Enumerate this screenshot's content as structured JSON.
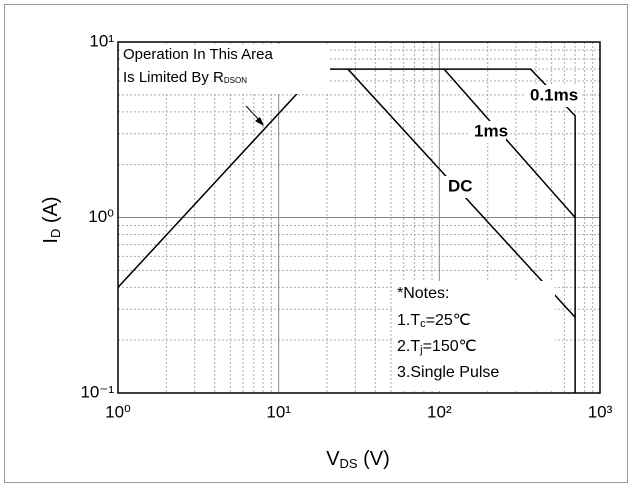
{
  "chart_data": {
    "type": "line",
    "ylabel": {
      "main": "I",
      "sub": "D",
      "rest": " (A)"
    },
    "xlabel": {
      "main": "V",
      "sub": "DS",
      "rest": " (V)"
    },
    "log_x": true,
    "log_y": true,
    "grid": true,
    "xlim": [
      1,
      1000
    ],
    "ylim": [
      0.1,
      10
    ],
    "xticks": [
      {
        "value": 1,
        "label": "10⁰"
      },
      {
        "value": 10,
        "label": "10¹"
      },
      {
        "value": 100,
        "label": "10²"
      },
      {
        "value": 1000,
        "label": "10³"
      }
    ],
    "yticks": [
      {
        "value": 0.1,
        "label": "10⁻¹"
      },
      {
        "value": 1,
        "label": "10⁰"
      },
      {
        "value": 10,
        "label": "10¹"
      }
    ],
    "xminorticks": [
      2,
      3,
      4,
      5,
      6,
      7,
      8,
      9,
      20,
      30,
      40,
      50,
      60,
      70,
      80,
      90,
      200,
      300,
      400,
      500,
      600,
      700,
      800,
      900
    ],
    "yminorticks": [
      0.2,
      0.3,
      0.4,
      0.5,
      0.6,
      0.7,
      0.8,
      0.9,
      2,
      3,
      4,
      5,
      6,
      7,
      8,
      9
    ],
    "series": [
      {
        "name": "DC",
        "color": "#000000",
        "x": [
          1,
          18,
          27,
          700
        ],
        "values": [
          0.4,
          7,
          7,
          0.27
        ]
      },
      {
        "name": "1ms",
        "color": "#000000",
        "x": [
          27,
          107,
          700
        ],
        "values": [
          7,
          7,
          1
        ]
      },
      {
        "name": "0.1ms",
        "color": "#000000",
        "x": [
          107,
          370,
          700,
          700
        ],
        "values": [
          7,
          7,
          3.8,
          0.1
        ]
      }
    ],
    "annotation": {
      "line1": "Operation In This Area",
      "line2": "Is Limited By R",
      "sub": "DSON"
    },
    "notes": {
      "title": "*Notes:",
      "items": [
        {
          "pre": "1.T",
          "sub": "c",
          "post": "=25℃"
        },
        {
          "pre": "2.T",
          "sub": "j",
          "post": "=150℃"
        },
        {
          "pre": "3.Single Pulse",
          "sub": "",
          "post": ""
        }
      ]
    }
  }
}
